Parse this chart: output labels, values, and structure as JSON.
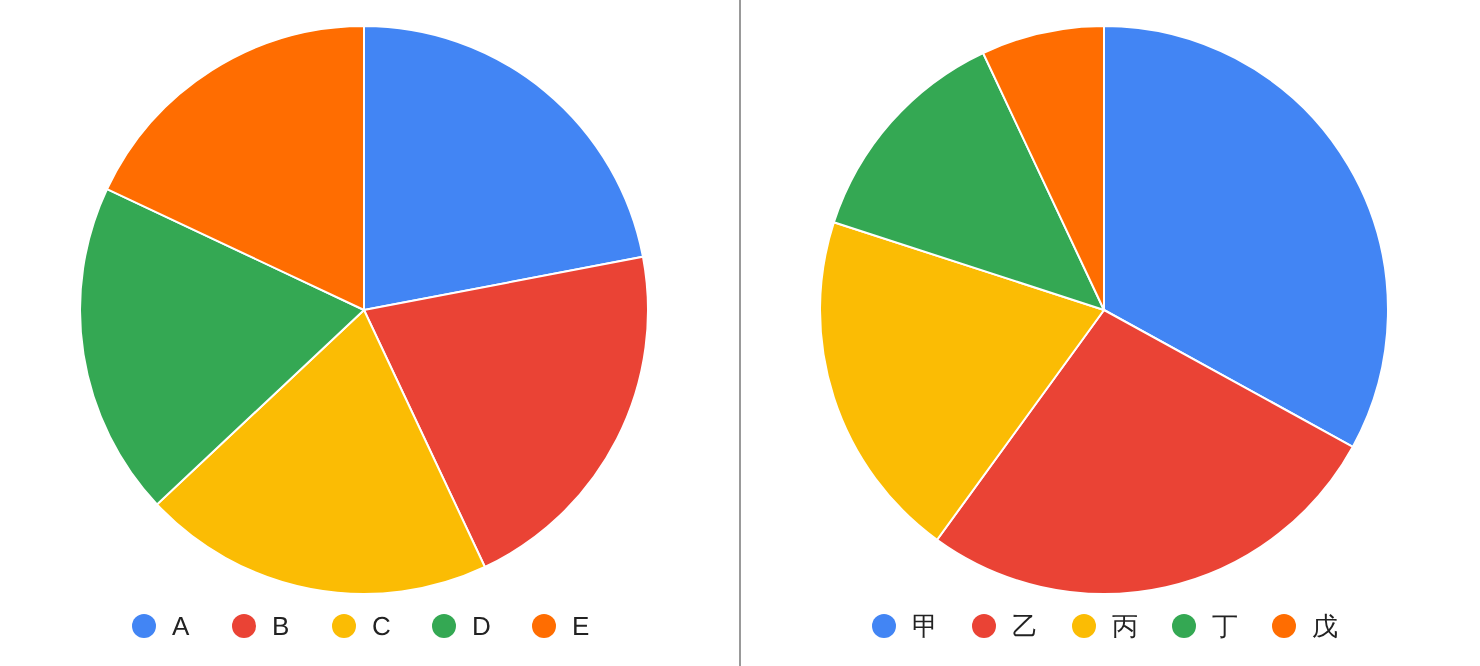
{
  "chart_data": [
    {
      "type": "pie",
      "categories": [
        "A",
        "B",
        "C",
        "D",
        "E"
      ],
      "values": [
        22,
        21,
        20,
        19,
        18
      ],
      "colors": [
        "#4285f4",
        "#ea4335",
        "#fbbc04",
        "#34a853",
        "#ff6d01"
      ],
      "legend": "bottom"
    },
    {
      "type": "pie",
      "categories": [
        "甲",
        "乙",
        "丙",
        "丁",
        "戊"
      ],
      "values": [
        33,
        27,
        20,
        13,
        7
      ],
      "colors": [
        "#4285f4",
        "#ea4335",
        "#fbbc04",
        "#34a853",
        "#ff6d01"
      ],
      "legend": "bottom"
    }
  ]
}
